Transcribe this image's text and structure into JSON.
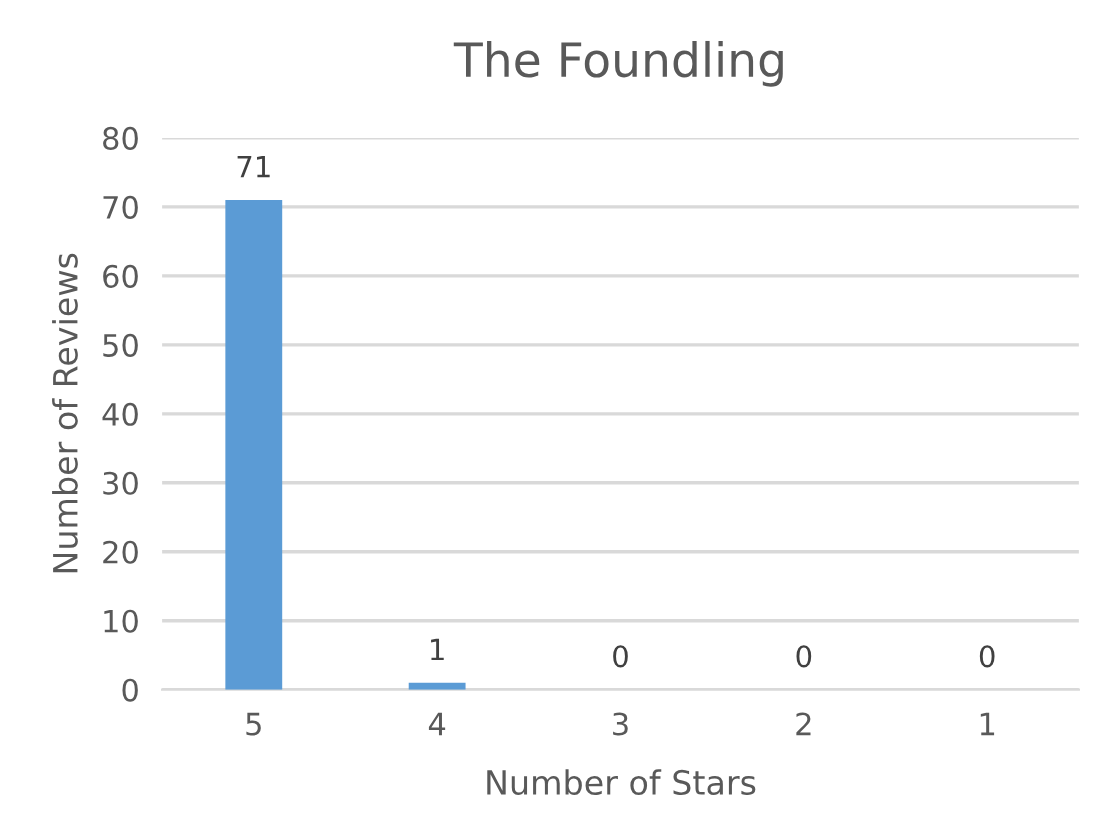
{
  "chart_data": {
    "type": "bar",
    "title": "The Foundling",
    "xlabel": "Number of Stars",
    "ylabel": "Number of Reviews",
    "categories": [
      "5",
      "4",
      "3",
      "2",
      "1"
    ],
    "values": [
      71,
      1,
      0,
      0,
      0
    ],
    "color": "#5b9bd5",
    "ylim": [
      0,
      80
    ],
    "yticks": [
      0,
      10,
      20,
      30,
      40,
      50,
      60,
      70,
      80
    ],
    "grid": "y",
    "data_labels": true
  }
}
